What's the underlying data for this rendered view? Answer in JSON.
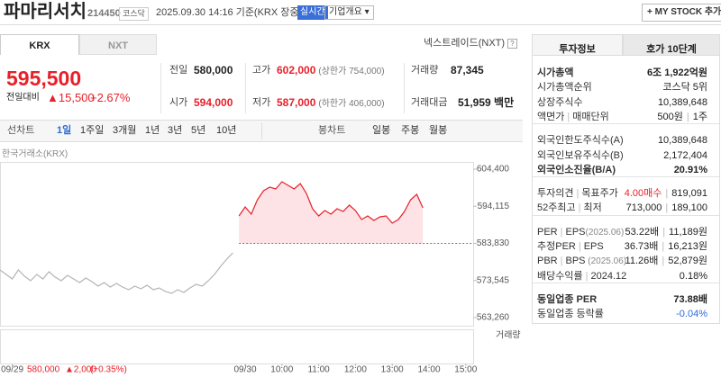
{
  "header": {
    "name": "파마리서치",
    "code": "214450",
    "market": "코스닥",
    "time": "2025.09.30 14:16 기준(KRX 장중)",
    "realtime": "실시간",
    "company": "기업개요 ▾",
    "mystock": "+ MY STOCK 추가"
  },
  "market_tabs": [
    "KRX",
    "NXT"
  ],
  "nxt_link": "넥스트레이드(NXT)",
  "price": {
    "current": "595,500",
    "change_label": "전일대비",
    "change": "▲15,500",
    "rate": "+2.67%"
  },
  "quote": [
    [
      {
        "label": "전일",
        "value": "580,000",
        "color": "#222222"
      },
      {
        "label": "고가",
        "value": "602,000",
        "note": "(상한가 754,000)",
        "color": "#e8202a"
      },
      {
        "label": "거래량",
        "value": "87,345",
        "color": "#222222"
      }
    ],
    [
      {
        "label": "시가",
        "value": "594,000",
        "color": "#e8202a"
      },
      {
        "label": "저가",
        "value": "587,000",
        "note": "(하한가 406,000)",
        "color": "#e8202a"
      },
      {
        "label": "거래대금",
        "value": "51,959 백만",
        "color": "#222222"
      }
    ]
  ],
  "period_tabs": {
    "line_label": "선차트",
    "line": [
      "1일",
      "1주일",
      "3개월",
      "1년",
      "3년",
      "5년",
      "10년"
    ],
    "candle_label": "봉차트",
    "candle": [
      "일봉",
      "주봉",
      "월봉"
    ]
  },
  "chart_data": {
    "type": "line",
    "source": "한국거래소(KRX)",
    "categories": [
      null,
      null,
      "09/29",
      null,
      null,
      null,
      null,
      null,
      null,
      null,
      null,
      null,
      null,
      null,
      null,
      null,
      null,
      null,
      null,
      null,
      null,
      null,
      null,
      null,
      null,
      null,
      null,
      null,
      null,
      null,
      null,
      null,
      null,
      null,
      null,
      null,
      null,
      null,
      null,
      null,
      "09/30",
      null,
      null,
      null,
      null,
      null,
      "10:00",
      null,
      null,
      null,
      null,
      null,
      "11:00",
      null,
      null,
      null,
      null,
      null,
      "12:00",
      null,
      null,
      null,
      null,
      null,
      "13:00",
      null,
      null,
      null,
      null,
      null,
      "14:00",
      null,
      null,
      null,
      null,
      null,
      "15:00"
    ],
    "series": [
      {
        "color": "#b4b4b4",
        "values": [
          576480,
          575230,
          573980,
          576480,
          574730,
          573490,
          575230,
          573980,
          575980,
          574480,
          573490,
          574980,
          573980,
          572990,
          574230,
          573240,
          571990,
          572990,
          571740,
          572740,
          571740,
          570990,
          571990,
          571240,
          572240,
          570990,
          571490,
          570490,
          569990,
          570990,
          570250,
          571490,
          572490,
          571990,
          573490,
          575230,
          577480,
          579470,
          581210,
          null,
          null,
          null,
          null,
          null,
          null,
          null,
          null,
          null,
          null,
          null,
          null,
          null,
          null,
          null,
          null,
          null,
          null,
          null,
          null,
          null,
          null,
          null,
          null,
          null,
          null,
          null,
          null,
          null,
          null,
          null,
          null,
          null,
          null,
          null,
          null,
          null,
          null
        ]
      },
      {
        "color": "#e8202a",
        "values": [
          null,
          null,
          null,
          null,
          null,
          null,
          null,
          null,
          null,
          null,
          null,
          null,
          null,
          null,
          null,
          null,
          null,
          null,
          null,
          null,
          null,
          null,
          null,
          null,
          null,
          null,
          null,
          null,
          null,
          null,
          null,
          null,
          null,
          null,
          null,
          null,
          null,
          null,
          null,
          591440,
          593930,
          591940,
          595920,
          598420,
          599410,
          598920,
          600910,
          599910,
          598920,
          600410,
          597670,
          593430,
          591440,
          592930,
          591940,
          593430,
          592680,
          594430,
          592930,
          590440,
          591440,
          590190,
          591190,
          591440,
          589440,
          590440,
          592680,
          595920,
          597420,
          593680,
          null,
          null,
          null,
          null,
          null,
          null,
          null
        ]
      }
    ],
    "ylim": [
      563260,
      604400
    ],
    "yticks": [
      {
        "value": 563260,
        "label": "563,260"
      },
      {
        "value": 573545,
        "label": "573,545"
      },
      {
        "value": 583830,
        "label": "583,830"
      },
      {
        "value": 594115,
        "label": "594,115"
      },
      {
        "value": 604400,
        "label": "604,400"
      }
    ],
    "volume_label": "거래량",
    "status": [
      "580,000",
      "▲2,000",
      "(+0.35%)"
    ]
  },
  "info_tabs": [
    "투자정보",
    "호가 10단계"
  ],
  "info": [
    [
      {
        "label": [
          "시가총액"
        ],
        "values": [
          "6조 1,922억원"
        ],
        "bold": true
      },
      {
        "label": [
          "시가총액순위"
        ],
        "values": [
          "코스닥 5위"
        ]
      },
      {
        "label": [
          "상장주식수"
        ],
        "values": [
          "10,389,648"
        ]
      },
      {
        "label": [
          "액면가",
          "매매단위"
        ],
        "values": [
          "500원",
          "1주"
        ]
      }
    ],
    [
      {
        "label": [
          "외국인한도주식수(A)"
        ],
        "values": [
          "10,389,648"
        ]
      },
      {
        "label": [
          "외국인보유주식수(B)"
        ],
        "values": [
          "2,172,404"
        ]
      },
      {
        "label": [
          "외국인소진율(B/A)"
        ],
        "values": [
          "20.91%"
        ],
        "bold": true
      }
    ],
    [
      {
        "label": [
          "투자의견",
          "목표주가"
        ],
        "values": [
          "4.00매수",
          "819,091"
        ],
        "color": "#e8202a"
      },
      {
        "label": [
          "52주최고",
          "최저"
        ],
        "values": [
          "713,000",
          "189,100"
        ]
      }
    ],
    [
      {
        "label": [
          "PER",
          "EPS"
        ],
        "date": "(2025.06)",
        "values": [
          "53.22배",
          "11,189원"
        ]
      },
      {
        "label": [
          "추정PER",
          "EPS"
        ],
        "values": [
          "36.73배",
          "16,213원"
        ]
      },
      {
        "label": [
          "PBR",
          "BPS"
        ],
        "date": " (2025.06)",
        "values": [
          "11.26배",
          "52,879원"
        ]
      },
      {
        "label": [
          "배당수익률",
          "2024.12"
        ],
        "values": [
          "0.18%"
        ]
      }
    ],
    [
      {
        "label": [
          "동일업종 PER"
        ],
        "values": [
          "73.88배"
        ],
        "bold": true
      },
      {
        "label": [
          "동일업종 등락률"
        ],
        "values": [
          "-0.04%"
        ],
        "color": "#2d6bd6"
      }
    ]
  ]
}
